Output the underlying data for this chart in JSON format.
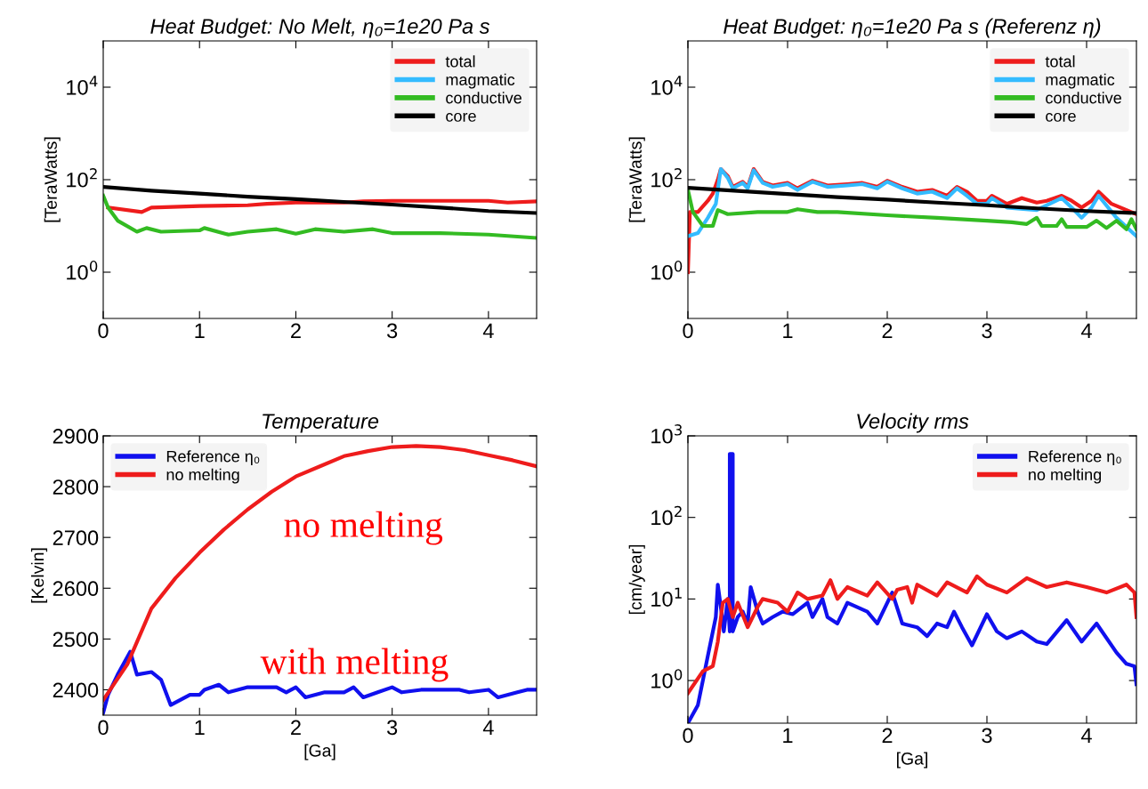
{
  "chart_data": [
    {
      "type": "line",
      "title": "Heat Budget: No Melt, η₀=1e20 Pa s",
      "ylabel": "[TeraWatts]",
      "log": "y",
      "legend": "top right",
      "grid": false,
      "marker": "none",
      "line_style": "solid",
      "xlim": [
        0,
        4.5
      ],
      "xticks": [
        0,
        1,
        2,
        3,
        4
      ],
      "ylim": [
        0.1,
        100000
      ],
      "yticks": [
        {
          "value": 1,
          "label": "10$^{0}$"
        },
        {
          "value": 100,
          "label": "10$^{2}$"
        },
        {
          "value": 10000,
          "label": "10$^{4}$"
        }
      ],
      "series": [
        {
          "name": "total",
          "color": "#ee1c1c",
          "x": [
            0.05,
            0.4,
            0.5,
            1,
            1.5,
            1.7,
            2,
            2.5,
            2.7,
            3,
            4,
            4.2,
            4.5
          ],
          "values": [
            25,
            20,
            25,
            27,
            28,
            30,
            32,
            32,
            34,
            35,
            35,
            32,
            34
          ]
        },
        {
          "name": "magmatic",
          "color": "#33bbff"
        },
        {
          "name": "conductive",
          "color": "#33bb22",
          "x": [
            0,
            0.05,
            0.15,
            0.35,
            0.45,
            0.6,
            1,
            1.05,
            1.3,
            1.5,
            1.8,
            2,
            2.2,
            2.5,
            2.8,
            3,
            3.5,
            4,
            4.5
          ],
          "values": [
            45,
            25,
            13,
            7.5,
            9,
            7.5,
            8,
            9,
            6.5,
            7.5,
            8.5,
            6.8,
            8.5,
            7.5,
            8.5,
            7,
            7,
            6.5,
            5.5
          ]
        },
        {
          "name": "core",
          "color": "#000000",
          "x": [
            0,
            0.5,
            1,
            1.5,
            2,
            2.5,
            3,
            3.5,
            4,
            4.5
          ],
          "values": [
            70,
            58,
            50,
            43,
            38,
            33,
            29,
            25,
            21,
            19
          ]
        }
      ]
    },
    {
      "type": "line",
      "title": "Heat Budget: η₀=1e20 Pa s (Referenz η)",
      "ylabel": "[TeraWatts]",
      "log": "y",
      "legend": "top right",
      "grid": false,
      "marker": "none",
      "line_style": "solid",
      "xlim": [
        0,
        4.5
      ],
      "xticks": [
        0,
        1,
        2,
        3,
        4
      ],
      "ylim": [
        0.1,
        100000
      ],
      "yticks": [
        {
          "value": 1,
          "label": "10$^{0}$"
        },
        {
          "value": 100,
          "label": "10$^{2}$"
        },
        {
          "value": 10000,
          "label": "10$^{4}$"
        }
      ],
      "series": [
        {
          "name": "total",
          "color": "#ee1c1c",
          "x": [
            0,
            0.02,
            0.1,
            0.2,
            0.25,
            0.3,
            0.33,
            0.4,
            0.45,
            0.55,
            0.6,
            0.66,
            0.75,
            0.85,
            1,
            1.1,
            1.25,
            1.4,
            1.6,
            1.75,
            1.9,
            2,
            2.15,
            2.3,
            2.45,
            2.6,
            2.7,
            2.8,
            2.9,
            3,
            3.05,
            3.2,
            3.35,
            3.5,
            3.6,
            3.75,
            3.85,
            3.95,
            4.05,
            4.12,
            4.25,
            4.4,
            4.5
          ],
          "values": [
            1,
            20,
            20,
            35,
            50,
            100,
            170,
            120,
            70,
            90,
            70,
            170,
            90,
            75,
            85,
            65,
            95,
            75,
            80,
            85,
            70,
            95,
            70,
            55,
            60,
            45,
            70,
            55,
            35,
            35,
            45,
            30,
            40,
            32,
            35,
            45,
            35,
            25,
            35,
            55,
            30,
            22,
            18
          ]
        },
        {
          "name": "magmatic",
          "color": "#33bbff",
          "x": [
            0,
            0.1,
            0.2,
            0.28,
            0.33,
            0.4,
            0.45,
            0.55,
            0.6,
            0.66,
            0.75,
            0.85,
            1,
            1.1,
            1.25,
            1.4,
            1.6,
            1.75,
            1.9,
            2,
            2.15,
            2.3,
            2.45,
            2.6,
            2.7,
            2.8,
            2.9,
            3,
            3.05,
            3.2,
            3.5,
            3.75,
            3.85,
            3.95,
            4.05,
            4.12,
            4.3,
            4.5
          ],
          "values": [
            6,
            7,
            15,
            30,
            170,
            110,
            65,
            85,
            65,
            160,
            85,
            70,
            80,
            60,
            90,
            70,
            75,
            80,
            65,
            90,
            65,
            50,
            55,
            40,
            65,
            45,
            30,
            30,
            40,
            25,
            22,
            40,
            25,
            15,
            25,
            45,
            15,
            6
          ]
        },
        {
          "name": "conductive",
          "color": "#33bb22",
          "x": [
            0,
            0.05,
            0.15,
            0.25,
            0.3,
            0.35,
            0.4,
            0.7,
            1,
            1.1,
            1.3,
            1.5,
            2,
            2.5,
            3,
            3.25,
            3.4,
            3.5,
            3.55,
            3.7,
            3.75,
            3.8,
            4,
            4.1,
            4.2,
            4.3,
            4.4,
            4.45,
            4.5
          ],
          "values": [
            60,
            20,
            10,
            10,
            22,
            20,
            18,
            20,
            20,
            23,
            20,
            20,
            17,
            15,
            13,
            12,
            11,
            15,
            10,
            10,
            14,
            9.5,
            9.5,
            13,
            9,
            13,
            8.5,
            14,
            8.5
          ]
        },
        {
          "name": "core",
          "color": "#000000",
          "x": [
            0,
            0.5,
            1,
            1.5,
            2,
            2.5,
            3,
            3.5,
            4,
            4.5
          ],
          "values": [
            67,
            57,
            49,
            42,
            37,
            32,
            28,
            24,
            21,
            19
          ]
        }
      ]
    },
    {
      "type": "line",
      "title": "Temperature",
      "xlabel": "[Ga]",
      "ylabel": "[Kelvin]",
      "legend": "top left",
      "grid": false,
      "marker": "none",
      "line_style": "solid",
      "xlim": [
        0,
        4.5
      ],
      "xticks": [
        0,
        1,
        2,
        3,
        4
      ],
      "ylim": [
        2350,
        2900
      ],
      "yticks": [
        2400,
        2500,
        2600,
        2700,
        2800,
        2900
      ],
      "annotations": [
        "no melting",
        "with melting"
      ],
      "series": [
        {
          "name": "Reference η₀",
          "color": "#1010ee",
          "x": [
            0,
            0.05,
            0.15,
            0.28,
            0.35,
            0.5,
            0.6,
            0.7,
            0.8,
            0.9,
            1,
            1.05,
            1.2,
            1.3,
            1.5,
            1.8,
            1.9,
            2,
            2.1,
            2.3,
            2.5,
            2.6,
            2.7,
            2.85,
            3,
            3.1,
            3.3,
            3.7,
            3.8,
            4,
            4.1,
            4.3,
            4.4,
            4.5
          ],
          "values": [
            2355,
            2390,
            2430,
            2475,
            2430,
            2435,
            2420,
            2370,
            2380,
            2390,
            2390,
            2400,
            2410,
            2395,
            2405,
            2405,
            2395,
            2405,
            2385,
            2395,
            2395,
            2405,
            2385,
            2395,
            2405,
            2395,
            2400,
            2400,
            2395,
            2400,
            2385,
            2395,
            2400,
            2400
          ]
        },
        {
          "name": "no melting",
          "color": "#ee1c1c",
          "x": [
            0,
            0.25,
            0.5,
            0.75,
            1,
            1.25,
            1.5,
            1.75,
            2,
            2.25,
            2.5,
            2.75,
            3,
            3.25,
            3.5,
            3.75,
            4,
            4.25,
            4.5
          ],
          "values": [
            2380,
            2450,
            2560,
            2620,
            2670,
            2715,
            2755,
            2790,
            2820,
            2840,
            2860,
            2870,
            2878,
            2880,
            2878,
            2872,
            2862,
            2852,
            2840
          ]
        }
      ]
    },
    {
      "type": "line",
      "title": "Velocity rms",
      "xlabel": "[Ga]",
      "ylabel": "[cm/year]",
      "log": "y",
      "legend": "top right",
      "grid": false,
      "marker": "none",
      "line_style": "solid",
      "xlim": [
        0,
        4.5
      ],
      "xticks": [
        0,
        1,
        2,
        3,
        4
      ],
      "ylim": [
        0.3,
        1000
      ],
      "yticks": [
        {
          "value": 1,
          "label": "10$^{0}$"
        },
        {
          "value": 10,
          "label": "10$^{1}$"
        },
        {
          "value": 100,
          "label": "10$^{2}$"
        },
        {
          "value": 1000,
          "label": "10$^{3}$"
        }
      ],
      "series": [
        {
          "name": "Reference η₀",
          "color": "#1010ee",
          "x": [
            0,
            0.1,
            0.2,
            0.28,
            0.3,
            0.33,
            0.36,
            0.4,
            0.42,
            0.42,
            0.45,
            0.45,
            0.5,
            0.55,
            0.6,
            0.63,
            0.7,
            0.75,
            0.85,
            0.95,
            1.05,
            1.2,
            1.25,
            1.35,
            1.4,
            1.5,
            1.6,
            1.8,
            1.9,
            2.05,
            2.15,
            2.3,
            2.4,
            2.5,
            2.6,
            2.67,
            2.75,
            2.85,
            3,
            3.1,
            3.2,
            3.35,
            3.5,
            3.6,
            3.8,
            3.95,
            4.1,
            4.3,
            4.4,
            4.48,
            4.5
          ],
          "values": [
            0.3,
            0.5,
            2,
            6,
            15,
            8,
            4,
            10,
            4,
            600,
            600,
            4,
            6,
            7,
            5,
            14,
            7,
            5,
            6,
            7,
            6.5,
            9,
            6,
            10,
            6,
            5,
            9,
            7,
            5,
            12,
            5,
            4.5,
            3.5,
            5,
            4.5,
            7,
            4.5,
            2.7,
            6.5,
            4,
            3.3,
            4,
            3,
            2.8,
            5.5,
            3,
            5,
            2.2,
            1.6,
            1.5,
            0.9
          ]
        },
        {
          "name": "no melting",
          "color": "#ee1c1c",
          "x": [
            0,
            0.15,
            0.25,
            0.3,
            0.35,
            0.4,
            0.45,
            0.5,
            0.6,
            0.7,
            0.75,
            0.9,
            1,
            1.1,
            1.2,
            1.35,
            1.43,
            1.5,
            1.6,
            1.8,
            1.9,
            2.05,
            2.1,
            2.2,
            2.25,
            2.3,
            2.5,
            2.6,
            2.8,
            2.9,
            3,
            3.2,
            3.4,
            3.6,
            3.8,
            4,
            4.2,
            4.4,
            4.48,
            4.5
          ],
          "values": [
            0.7,
            1.3,
            1.5,
            3,
            9,
            10,
            6,
            9,
            4.5,
            8,
            10,
            9,
            7,
            12,
            10,
            11,
            17,
            10,
            14,
            11,
            16,
            10,
            13,
            14,
            9,
            15,
            11,
            16,
            12,
            19,
            15,
            12,
            18,
            14,
            16,
            14,
            12,
            15,
            12,
            6
          ]
        }
      ]
    }
  ]
}
